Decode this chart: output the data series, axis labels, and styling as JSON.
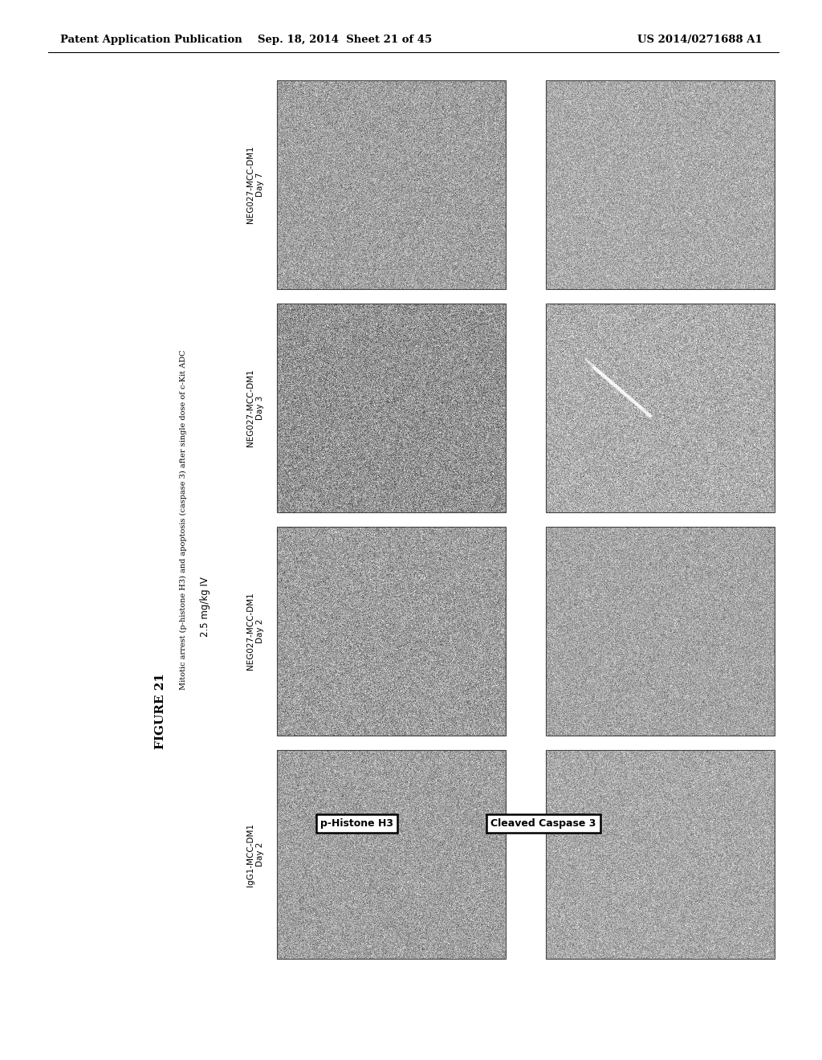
{
  "header_left": "Patent Application Publication",
  "header_mid": "Sep. 18, 2014  Sheet 21 of 45",
  "header_right": "US 2014/0271688 A1",
  "figure_label": "FIGURE 21",
  "subtitle": "Mitotic arrest (p-histone H3) and apoptosis (caspase 3) after single dose of c-Kit ADC",
  "dose_label": "2.5 mg/kg IV",
  "col_labels": [
    "IgG1-MCC-DM1\nDay 2",
    "NEG027-MCC-DM1\nDay 2",
    "NEG027-MCC-DM1\nDay 3",
    "NEG027-MCC-DM1\nDay 7"
  ],
  "row_label_1": "p-Histone H3",
  "row_label_2": "Cleaved Caspase 3",
  "bg_color": "#ffffff",
  "text_color": "#000000"
}
